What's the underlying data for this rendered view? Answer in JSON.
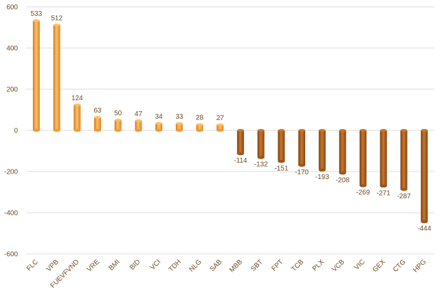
{
  "chart_data": {
    "type": "bar",
    "title": "",
    "xlabel": "",
    "ylabel": "",
    "ylim": [
      -600,
      600
    ],
    "yticks": [
      -600,
      -400,
      -200,
      0,
      200,
      400,
      600
    ],
    "grid": true,
    "legend": "none",
    "categories": [
      "FLC",
      "VPB",
      "FUEVFVND",
      "VRE",
      "BMI",
      "BID",
      "VCI",
      "TDH",
      "NLG",
      "SAB",
      "MBB",
      "SBT",
      "FPT",
      "TCB",
      "PLX",
      "VCB",
      "VIC",
      "GEX",
      "CTG",
      "HPG"
    ],
    "values": [
      533,
      512,
      124,
      63,
      50,
      47,
      34,
      33,
      28,
      27,
      -114,
      -132,
      -151,
      -170,
      -193,
      -208,
      -269,
      -271,
      -287,
      -444
    ],
    "colors": {
      "positive_light": "#fcc06a",
      "positive_mid": "#f59a2e",
      "positive_dark": "#d2781a",
      "negative_light": "#c8762c",
      "negative_mid": "#9e5417",
      "negative_dark": "#7a3e0f",
      "text": "#6b4a22",
      "grid": "#dcdcdc"
    }
  }
}
